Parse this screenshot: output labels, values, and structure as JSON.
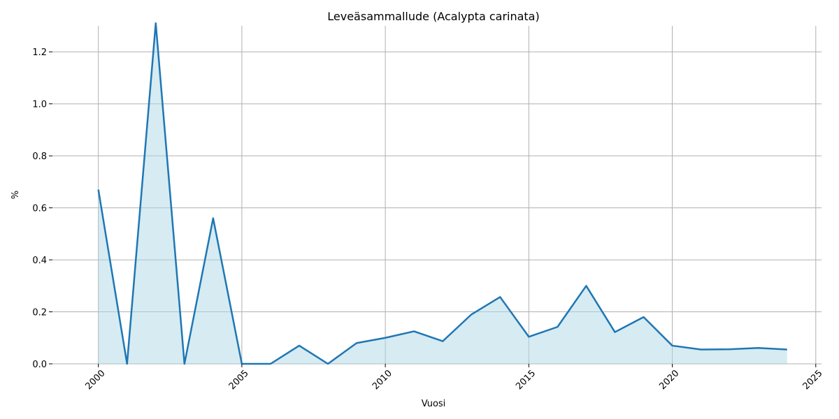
{
  "chart_data": {
    "type": "area",
    "title": "Leveäsammallude (Acalypta carinata)",
    "xlabel": "Vuosi",
    "ylabel": "%",
    "xlim": [
      2000,
      2025
    ],
    "ylim": [
      0,
      1.3
    ],
    "xticks": [
      "2000",
      "2005",
      "2010",
      "2015",
      "2020",
      "2025"
    ],
    "yticks": [
      "0.0",
      "0.2",
      "0.4",
      "0.6",
      "0.8",
      "1.0",
      "1.2"
    ],
    "grid": true,
    "x": [
      2000,
      2001,
      2002,
      2003,
      2004,
      2005,
      2006,
      2007,
      2008,
      2009,
      2010,
      2011,
      2012,
      2013,
      2014,
      2015,
      2016,
      2017,
      2018,
      2019,
      2020,
      2021,
      2022,
      2023,
      2024
    ],
    "series": [
      {
        "values": [
          0.67,
          0.0,
          1.31,
          0.0,
          0.56,
          0.0,
          0.0,
          0.07,
          0.0,
          0.08,
          0.1,
          0.125,
          0.087,
          0.19,
          0.257,
          0.104,
          0.142,
          0.3,
          0.122,
          0.18,
          0.07,
          0.055,
          0.056,
          0.061,
          0.055
        ],
        "line_color": "#1f77b4",
        "fill_color": "#add8e6"
      }
    ]
  }
}
